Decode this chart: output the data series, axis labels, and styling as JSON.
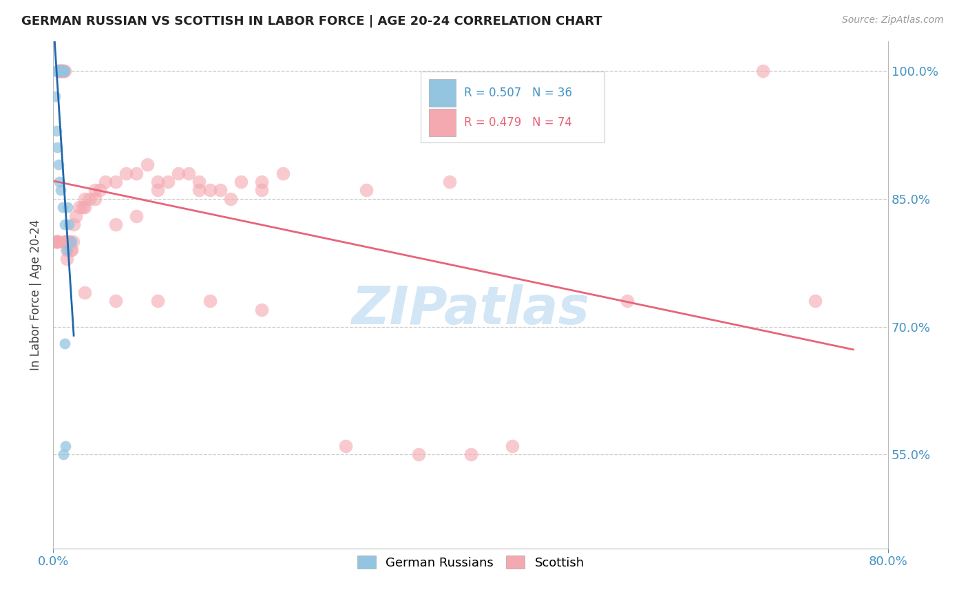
{
  "title": "GERMAN RUSSIAN VS SCOTTISH IN LABOR FORCE | AGE 20-24 CORRELATION CHART",
  "source": "Source: ZipAtlas.com",
  "ylabel": "In Labor Force | Age 20-24",
  "r1": 0.507,
  "n1": 36,
  "r2": 0.479,
  "n2": 74,
  "color_blue": "#93c4e0",
  "color_pink": "#f4a8b0",
  "color_blue_line": "#2166ac",
  "color_pink_line": "#e8637a",
  "color_axis_labels": "#4393c3",
  "legend_label1": "German Russians",
  "legend_label2": "Scottish",
  "xmin": 0.0,
  "xmax": 0.8,
  "ymin": 0.44,
  "ymax": 1.035,
  "ytick_values": [
    0.55,
    0.7,
    0.85,
    1.0
  ],
  "ytick_labels": [
    "55.0%",
    "70.0%",
    "85.0%",
    "100.0%"
  ],
  "blue_x": [
    0.002,
    0.003,
    0.003,
    0.004,
    0.004,
    0.004,
    0.005,
    0.005,
    0.005,
    0.006,
    0.006,
    0.006,
    0.006,
    0.007,
    0.007,
    0.007,
    0.008,
    0.008,
    0.008,
    0.009,
    0.01,
    0.011,
    0.003,
    0.004,
    0.005,
    0.006,
    0.007,
    0.009,
    0.015,
    0.018,
    0.011,
    0.012,
    0.01,
    0.013,
    0.011,
    0.014
  ],
  "blue_y": [
    0.97,
    1.0,
    1.0,
    1.0,
    1.0,
    1.0,
    1.0,
    1.0,
    1.0,
    1.0,
    1.0,
    1.0,
    1.0,
    1.0,
    1.0,
    1.0,
    1.0,
    1.0,
    1.0,
    1.0,
    1.0,
    1.0,
    0.93,
    0.91,
    0.89,
    0.87,
    0.86,
    0.84,
    0.82,
    0.8,
    0.68,
    0.56,
    0.55,
    0.79,
    0.82,
    0.84
  ],
  "pink_x": [
    0.003,
    0.003,
    0.004,
    0.004,
    0.004,
    0.005,
    0.005,
    0.006,
    0.006,
    0.007,
    0.007,
    0.008,
    0.008,
    0.009,
    0.009,
    0.01,
    0.01,
    0.011,
    0.011,
    0.012,
    0.012,
    0.013,
    0.013,
    0.014,
    0.015,
    0.016,
    0.017,
    0.018,
    0.019,
    0.02,
    0.022,
    0.025,
    0.028,
    0.03,
    0.035,
    0.04,
    0.045,
    0.05,
    0.06,
    0.07,
    0.08,
    0.09,
    0.1,
    0.11,
    0.12,
    0.13,
    0.14,
    0.15,
    0.16,
    0.18,
    0.2,
    0.22,
    0.03,
    0.04,
    0.06,
    0.08,
    0.1,
    0.14,
    0.17,
    0.2,
    0.03,
    0.06,
    0.2,
    0.28,
    0.35,
    0.4,
    0.44,
    0.55,
    0.68,
    0.73,
    0.1,
    0.15,
    0.3,
    0.38
  ],
  "pink_y": [
    0.8,
    0.8,
    0.8,
    0.8,
    0.8,
    1.0,
    1.0,
    1.0,
    1.0,
    1.0,
    1.0,
    1.0,
    1.0,
    1.0,
    1.0,
    1.0,
    1.0,
    1.0,
    0.8,
    0.8,
    0.8,
    0.78,
    0.79,
    0.8,
    0.8,
    0.8,
    0.79,
    0.79,
    0.8,
    0.82,
    0.83,
    0.84,
    0.84,
    0.85,
    0.85,
    0.85,
    0.86,
    0.87,
    0.87,
    0.88,
    0.88,
    0.89,
    0.87,
    0.87,
    0.88,
    0.88,
    0.87,
    0.86,
    0.86,
    0.87,
    0.87,
    0.88,
    0.84,
    0.86,
    0.82,
    0.83,
    0.86,
    0.86,
    0.85,
    0.86,
    0.74,
    0.73,
    0.72,
    0.56,
    0.55,
    0.55,
    0.56,
    0.73,
    1.0,
    0.73,
    0.73,
    0.73,
    0.86,
    0.87
  ]
}
